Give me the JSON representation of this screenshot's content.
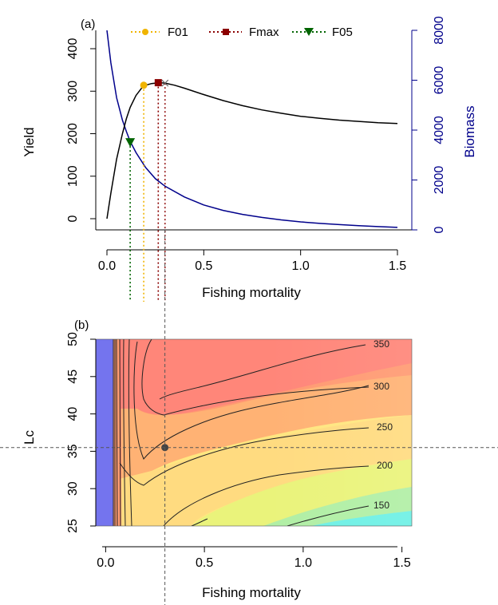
{
  "chart_data": [
    {
      "panel_label": "(a)",
      "type": "line",
      "xlabel": "Fishing mortality",
      "ylabel_left": "Yield",
      "ylabel_right": "Biomass",
      "xlim": [
        0,
        1.5
      ],
      "ylim_left": [
        0,
        400
      ],
      "ylim_right": [
        0,
        8000
      ],
      "xticks": [
        "0.0",
        "0.5",
        "1.0",
        "1.5"
      ],
      "yticks_left": [
        "0",
        "100",
        "200",
        "300",
        "400"
      ],
      "yticks_right": [
        "0",
        "2000",
        "4000",
        "6000",
        "8000"
      ],
      "colors": {
        "yield": "#000000",
        "biomass": "#00008b",
        "F01": "#f0b400",
        "Fmax": "#8b0000",
        "F05": "#006400"
      },
      "series": [
        {
          "name": "Yield",
          "axis": "left",
          "x": [
            0,
            0.02,
            0.05,
            0.08,
            0.1,
            0.12,
            0.15,
            0.18,
            0.2,
            0.23,
            0.27,
            0.3,
            0.35,
            0.4,
            0.5,
            0.6,
            0.7,
            0.8,
            0.9,
            1.0,
            1.1,
            1.2,
            1.3,
            1.4,
            1.5
          ],
          "values": [
            0,
            60,
            140,
            200,
            235,
            262,
            290,
            308,
            314,
            318,
            320,
            319,
            314,
            307,
            292,
            278,
            266,
            256,
            248,
            241,
            236,
            232,
            229,
            226,
            224
          ]
        },
        {
          "name": "Biomass",
          "axis": "right",
          "x": [
            0,
            0.02,
            0.05,
            0.08,
            0.1,
            0.12,
            0.15,
            0.2,
            0.25,
            0.3,
            0.4,
            0.5,
            0.6,
            0.7,
            0.8,
            0.9,
            1.0,
            1.1,
            1.2,
            1.3,
            1.4,
            1.5
          ],
          "values": [
            8000,
            6700,
            5300,
            4400,
            3950,
            3550,
            3100,
            2500,
            2050,
            1750,
            1320,
            1000,
            780,
            620,
            500,
            400,
            320,
            260,
            210,
            170,
            130,
            100
          ]
        }
      ],
      "reference_points": [
        {
          "name": "F01",
          "x": 0.19,
          "y": 314,
          "marker": "circle"
        },
        {
          "name": "Fmax",
          "x": 0.265,
          "y": 320,
          "marker": "square"
        },
        {
          "name": "F05",
          "x": 0.12,
          "y": 180,
          "marker": "triangle-down"
        }
      ],
      "current_point": {
        "x": 0.3,
        "y": 319,
        "marker": "x"
      },
      "legend": {
        "position": "top",
        "entries": [
          "F01",
          "Fmax",
          "F05"
        ]
      }
    },
    {
      "panel_label": "(b)",
      "type": "heatmap",
      "xlabel": "Fishing mortality",
      "ylabel": "Lc",
      "xlim": [
        -0.05,
        1.55
      ],
      "ylim": [
        25,
        50
      ],
      "xticks": [
        "0.0",
        "0.5",
        "1.0",
        "1.5"
      ],
      "yticks": [
        "25",
        "30",
        "35",
        "40",
        "45",
        "50"
      ],
      "color_scale": [
        "#7878f0",
        "#ff7070",
        "#ffb270",
        "#ffe680",
        "#f4f470",
        "#a0f0a0",
        "#60f0f0"
      ],
      "contour_levels": [
        {
          "label": "350",
          "value": 350
        },
        {
          "label": "300",
          "value": 300
        },
        {
          "label": "250",
          "value": 250
        },
        {
          "label": "200",
          "value": 200
        },
        {
          "label": "150",
          "value": 150
        }
      ],
      "current_point": {
        "x": 0.3,
        "y": 35.5
      },
      "reference_lines": {
        "vertical_x": 0.3,
        "horizontal_y": 35.5
      }
    }
  ]
}
